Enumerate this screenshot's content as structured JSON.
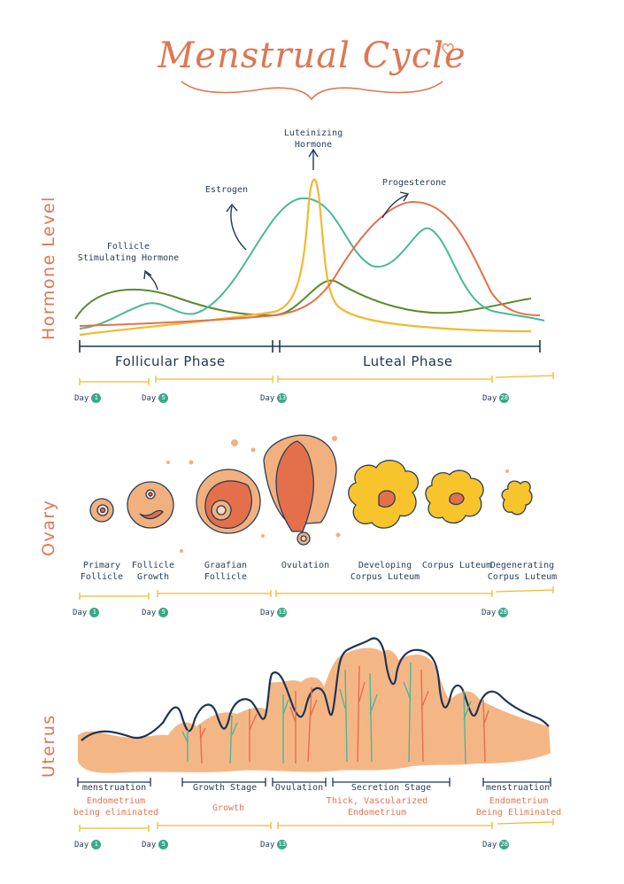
{
  "title": "Menstrual Cycle",
  "side_labels": {
    "hormone": "Hormone Level",
    "ovary": "Ovary",
    "uterus": "Uterus"
  },
  "hormones": {
    "fsh": "Follicle\nStimulating Hormone",
    "estrogen": "Estrogen",
    "lh": "Luteinizing\nHormone",
    "progesterone": "Progesterone"
  },
  "phases": {
    "follicular": "Follicular Phase",
    "luteal": "Luteal Phase"
  },
  "day_markers": {
    "d1": "Day",
    "d1n": "1",
    "d5": "Day",
    "d5n": "5",
    "d13": "Day",
    "d13n": "13",
    "d28": "Day",
    "d28n": "28"
  },
  "ovary_stages": [
    "Primary\nFollicle",
    "Follicle\nGrowth",
    "Graafian\nFollicle",
    "Ovulation",
    "Developing\nCorpus Luteum",
    "Corpus Luteum",
    "Degenerating\nCorpus Luteum"
  ],
  "uterus_stages": {
    "menstruation1": "menstruation",
    "growth_stage": "Growth Stage",
    "ovulation": "Ovulation",
    "secretion_stage": "Secretion Stage",
    "menstruation2": "menstruation"
  },
  "uterus_notes": {
    "eliminated1": "Endometrium\nbeing eliminated",
    "growth": "Growth",
    "thick": "Thick, Vascularized\nEndometrium",
    "eliminated2": "Endometrium\nBeing Eliminated"
  },
  "colors": {
    "title": "#e07651",
    "fsh": "#5b8a2e",
    "estrogen": "#4ab79a",
    "lh": "#f2b92c",
    "progesterone": "#e3704a",
    "navy": "#1f3552",
    "peach": "#f0b07c",
    "teal_dot": "#3aa889"
  }
}
